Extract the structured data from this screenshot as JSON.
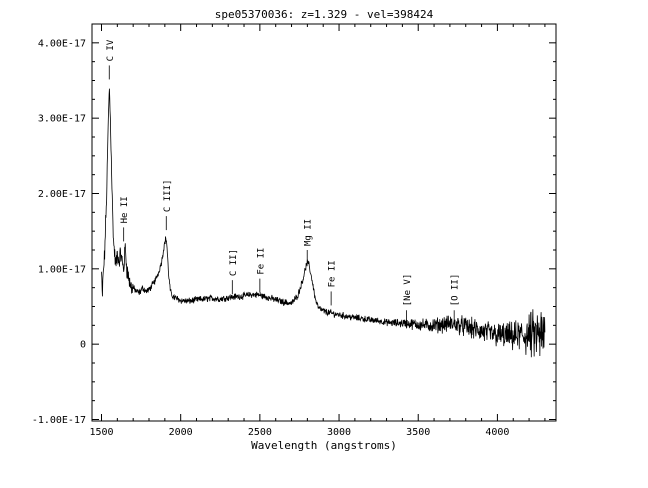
{
  "chart_data": {
    "type": "line",
    "title": "spe05370036: z=1.329 - vel=398424",
    "xlabel": "Wavelength (angstroms)",
    "ylabel": "",
    "xlim": [
      1440,
      4370
    ],
    "ylim": [
      -1.02e-17,
      4.25e-17
    ],
    "x_ticks": [
      1500,
      2000,
      2500,
      3000,
      3500,
      4000
    ],
    "x_tick_labels": [
      "1500",
      "2000",
      "2500",
      "3000",
      "3500",
      "4000"
    ],
    "y_ticks": [
      -1e-17,
      0,
      1e-17,
      2e-17,
      3e-17,
      4e-17
    ],
    "y_tick_labels": [
      "-1.00E-17",
      "0",
      "1.00E-17",
      "2.00E-17",
      "3.00E-17",
      "4.00E-17"
    ],
    "grid": false,
    "series": [
      {
        "color": "#000000",
        "x": [
          1500,
          1505,
          1510,
          1515,
          1520,
          1525,
          1530,
          1535,
          1540,
          1545,
          1549,
          1553,
          1557,
          1562,
          1567,
          1572,
          1578,
          1585,
          1592,
          1600,
          1610,
          1620,
          1630,
          1640,
          1650,
          1660,
          1670,
          1680,
          1690,
          1700,
          1720,
          1740,
          1760,
          1780,
          1800,
          1820,
          1840,
          1860,
          1880,
          1895,
          1905,
          1910,
          1915,
          1920,
          1925,
          1935,
          1945,
          1960,
          1980,
          2000,
          2050,
          2100,
          2150,
          2200,
          2250,
          2300,
          2350,
          2400,
          2450,
          2500,
          2550,
          2600,
          2650,
          2700,
          2740,
          2770,
          2790,
          2800,
          2810,
          2830,
          2850,
          2870,
          2900,
          2950,
          3000,
          3050,
          3100,
          3150,
          3200,
          3250,
          3300,
          3350,
          3400,
          3450,
          3500,
          3550,
          3600,
          3650,
          3700,
          3750,
          3800,
          3850,
          3900,
          3950,
          4000,
          4050,
          4100,
          4150,
          4200,
          4250,
          4300
        ],
        "y": [
          9.5e-18,
          6e-18,
          9e-18,
          1.05e-17,
          1.2e-17,
          1.55e-17,
          1.8e-17,
          2.2e-17,
          2.7e-17,
          3.1e-17,
          3.42e-17,
          3.2e-17,
          2.9e-17,
          2.5e-17,
          2e-17,
          1.6e-17,
          1.3e-17,
          1.15e-17,
          1.05e-17,
          1.2e-17,
          1.1e-17,
          1.2e-17,
          1.1e-17,
          1e-17,
          1.3e-17,
          1e-17,
          9e-18,
          8e-18,
          7.5e-18,
          7.5e-18,
          7e-18,
          6.8e-18,
          7.5e-18,
          7e-18,
          7.2e-18,
          7.8e-18,
          8.5e-18,
          9.5e-18,
          1.1e-17,
          1.3e-17,
          1.4e-17,
          1.38e-17,
          1.25e-17,
          1.05e-17,
          9e-18,
          7e-18,
          6.5e-18,
          6.2e-18,
          6e-18,
          5.8e-18,
          5.7e-18,
          5.9e-18,
          6e-18,
          6.1e-18,
          6e-18,
          6.2e-18,
          6.3e-18,
          6.4e-18,
          6.6e-18,
          6.5e-18,
          6.2e-18,
          5.9e-18,
          5.6e-18,
          5.4e-18,
          6.5e-18,
          8.5e-18,
          1.02e-17,
          1.08e-17,
          1.05e-17,
          8.5e-18,
          6e-18,
          4.8e-18,
          4.4e-18,
          4.1e-18,
          3.9e-18,
          3.7e-18,
          3.5e-18,
          3.4e-18,
          3.2e-18,
          3.1e-18,
          2.9e-18,
          2.8e-18,
          2.8e-18,
          2.7e-18,
          2.6e-18,
          2.5e-18,
          2.5e-18,
          2.6e-18,
          2.7e-18,
          2.6e-18,
          2.3e-18,
          2e-18,
          1.7e-18,
          1.4e-18,
          1.2e-18,
          1.1e-18,
          1e-18,
          1.1e-18,
          1.2e-18,
          1.1e-18,
          1e-18
        ]
      }
    ],
    "annotations": [
      {
        "text": "C IV",
        "x": 1549,
        "y": 3.7e-17
      },
      {
        "text": "He II",
        "x": 1640,
        "y": 1.55e-17
      },
      {
        "text": "C III]",
        "x": 1909,
        "y": 1.7e-17
      },
      {
        "text": "C II]",
        "x": 2326,
        "y": 8.5e-18
      },
      {
        "text": "Fe II",
        "x": 2500,
        "y": 8.7e-18
      },
      {
        "text": "Mg II",
        "x": 2799,
        "y": 1.25e-17
      },
      {
        "text": "Fe II",
        "x": 2950,
        "y": 7e-18
      },
      {
        "text": "[Ne V]",
        "x": 3426,
        "y": 4.5e-18
      },
      {
        "text": "[O II]",
        "x": 3727,
        "y": 4.5e-18
      }
    ]
  }
}
